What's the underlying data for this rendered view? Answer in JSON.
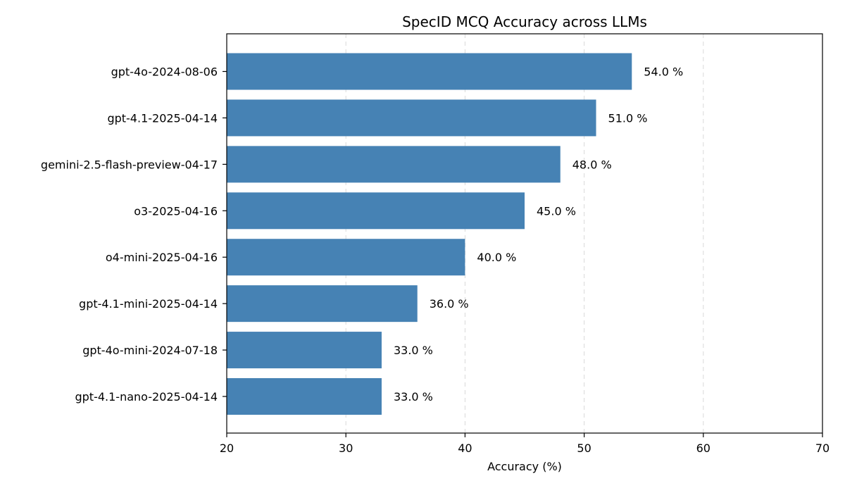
{
  "chart_data": {
    "type": "bar",
    "orientation": "horizontal",
    "title": "SpecID MCQ Accuracy across LLMs",
    "xlabel": "Accuracy (%)",
    "ylabel": "",
    "xlim": [
      20,
      70
    ],
    "xticks": [
      20,
      30,
      40,
      50,
      60,
      70
    ],
    "grid": "x-dashed",
    "legend": "none",
    "bar_color": "#4682b4",
    "categories": [
      "gpt-4o-2024-08-06",
      "gpt-4.1-2025-04-14",
      "gemini-2.5-flash-preview-04-17",
      "o3-2025-04-16",
      "o4-mini-2025-04-16",
      "gpt-4.1-mini-2025-04-14",
      "gpt-4o-mini-2024-07-18",
      "gpt-4.1-nano-2025-04-14"
    ],
    "values": [
      54.0,
      51.0,
      48.0,
      45.0,
      40.0,
      36.0,
      33.0,
      33.0
    ],
    "value_labels": [
      "54.0 %",
      "51.0 %",
      "48.0 %",
      "45.0 %",
      "40.0 %",
      "36.0 %",
      "33.0 %",
      "33.0 %"
    ]
  }
}
